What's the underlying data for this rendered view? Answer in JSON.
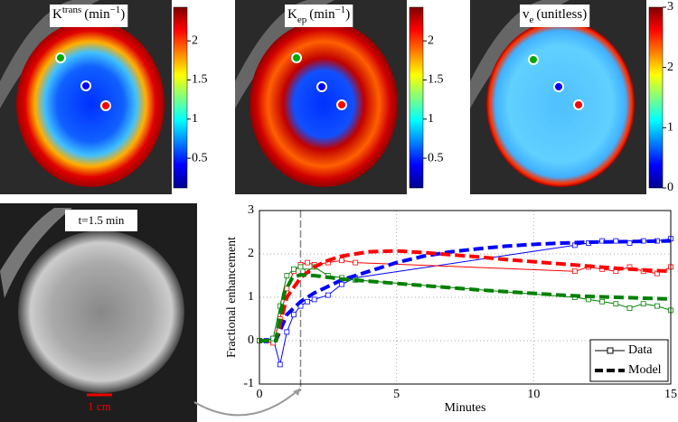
{
  "maps": [
    {
      "label": {
        "symbol": "K",
        "sup": "trans",
        "unit": "(min",
        "unit_sup": "−1",
        "end": ")"
      },
      "clim": [
        0.12,
        2.43
      ],
      "cticks": [
        0.5,
        1,
        1.5,
        2
      ]
    },
    {
      "label": {
        "symbol": "K",
        "sub": "ep",
        "unit": "(min",
        "unit_sup": "−1",
        "end": ")"
      },
      "clim": [
        0.12,
        2.43
      ],
      "cticks": [
        0.5,
        1,
        1.5,
        2
      ]
    },
    {
      "label": {
        "symbol": "v",
        "sub": "e",
        "unit": "(unitless)"
      },
      "clim": [
        0,
        3
      ],
      "cticks": [
        0,
        1,
        2,
        3
      ]
    }
  ],
  "snapshot": {
    "label": "t=1.5 min",
    "scale_bar": "1 cm"
  },
  "chart_data": {
    "type": "line",
    "xlabel": "Minutes",
    "ylabel": "Fractional enhancement",
    "xlim": [
      0,
      15
    ],
    "ylim": [
      -1,
      3
    ],
    "xticks": [
      0,
      5,
      10,
      15
    ],
    "yticks": [
      -1,
      0,
      1,
      2,
      3
    ],
    "grid": true,
    "vline_x": 1.5,
    "legend_corner": "lower right",
    "legend": [
      {
        "label": "Data",
        "style": "data"
      },
      {
        "label": "Model",
        "style": "model"
      }
    ],
    "series": [
      {
        "style": "data",
        "color": "#0000ff",
        "x": [
          0,
          0.25,
          0.5,
          0.75,
          1,
          1.25,
          1.5,
          1.75,
          2,
          2.5,
          3,
          3.5,
          11.5,
          12,
          12.5,
          13,
          13.5,
          14,
          14.5,
          15
        ],
        "values": [
          0,
          0,
          0.05,
          -0.55,
          0.2,
          0.6,
          0.8,
          0.9,
          0.95,
          1.05,
          1.3,
          1.45,
          2.2,
          2.25,
          2.3,
          2.3,
          2.25,
          2.3,
          2.3,
          2.35
        ]
      },
      {
        "style": "data",
        "color": "#ff0000",
        "x": [
          0,
          0.5,
          0.75,
          1,
          1.25,
          1.5,
          1.75,
          2,
          2.5,
          3,
          3.5,
          11.5,
          12,
          12.5,
          13,
          13.5,
          14,
          14.5,
          15
        ],
        "values": [
          0,
          -0.05,
          0.5,
          1.2,
          1.6,
          1.75,
          1.8,
          1.75,
          1.8,
          1.85,
          1.8,
          1.6,
          1.7,
          1.65,
          1.6,
          1.7,
          1.6,
          1.55,
          1.7
        ]
      },
      {
        "style": "data",
        "color": "#008000",
        "x": [
          0,
          0.5,
          0.75,
          1,
          1.25,
          1.5,
          1.75,
          2,
          2.5,
          3,
          3.5,
          11.5,
          12,
          12.5,
          13,
          13.5,
          14,
          14.5,
          15
        ],
        "values": [
          0,
          0.05,
          0.8,
          1.5,
          1.65,
          1.7,
          1.6,
          1.7,
          1.5,
          1.45,
          1.4,
          1,
          0.95,
          0.9,
          0.85,
          0.75,
          0.85,
          0.8,
          0.7
        ]
      },
      {
        "style": "model",
        "color": "#0000ff",
        "x": [
          0,
          0.6,
          1,
          1.5,
          2,
          3,
          4,
          5,
          6,
          7,
          8,
          9,
          10,
          11,
          12,
          13,
          14,
          15
        ],
        "values": [
          0,
          0,
          0.6,
          0.9,
          1.1,
          1.4,
          1.6,
          1.8,
          1.95,
          2.05,
          2.12,
          2.18,
          2.22,
          2.25,
          2.27,
          2.28,
          2.29,
          2.3
        ]
      },
      {
        "style": "model",
        "color": "#ff0000",
        "x": [
          0,
          0.6,
          1,
          1.5,
          2,
          2.5,
          3,
          4,
          5,
          6,
          7,
          8,
          9,
          10,
          11,
          12,
          13,
          14,
          15
        ],
        "values": [
          0,
          0,
          1,
          1.45,
          1.7,
          1.85,
          1.95,
          2.05,
          2.07,
          2.03,
          1.98,
          1.93,
          1.87,
          1.82,
          1.77,
          1.72,
          1.67,
          1.63,
          1.6
        ]
      },
      {
        "style": "model",
        "color": "#008000",
        "x": [
          0,
          0.6,
          0.9,
          1.2,
          1.5,
          2,
          3,
          4,
          5,
          6,
          7,
          8,
          9,
          10,
          11,
          12,
          13,
          14,
          15
        ],
        "values": [
          0,
          0,
          1.1,
          1.45,
          1.52,
          1.5,
          1.42,
          1.37,
          1.32,
          1.27,
          1.22,
          1.17,
          1.13,
          1.09,
          1.05,
          1.02,
          1,
          0.98,
          0.96
        ]
      }
    ]
  }
}
